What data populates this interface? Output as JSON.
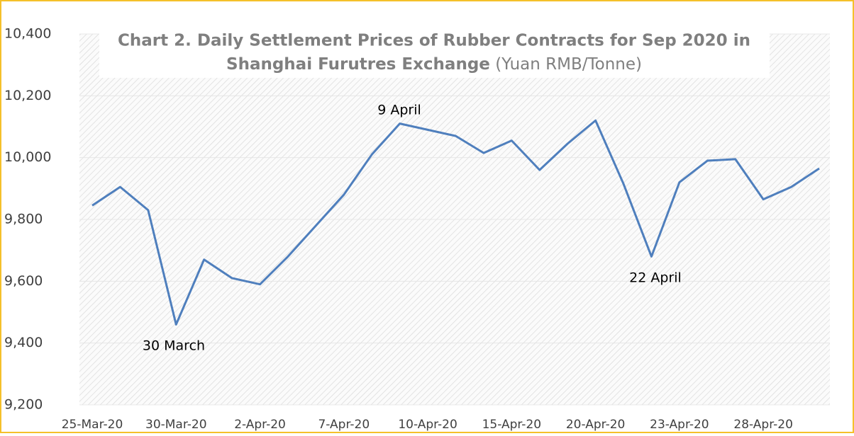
{
  "chart_data": {
    "type": "line",
    "title_lines": [
      "Chart 2. Daily Settlement Prices of Rubber Contracts for Sep 2020 in",
      "Shanghai  Furutres Exchange"
    ],
    "unit": "(Yuan RMB/Tonne)",
    "categories": [
      "25-Mar-20",
      null,
      null,
      "30-Mar-20",
      null,
      null,
      "2-Apr-20",
      null,
      null,
      "7-Apr-20",
      null,
      null,
      "10-Apr-20",
      null,
      null,
      "15-Apr-20",
      null,
      null,
      "20-Apr-20",
      null,
      null,
      "23-Apr-20",
      null,
      null,
      "28-Apr-20",
      null,
      null
    ],
    "series": [
      {
        "name": "Settlement price",
        "color": "#4f7fbd",
        "values": [
          9845,
          9905,
          9830,
          9460,
          9670,
          9610,
          9590,
          9680,
          9780,
          9880,
          10010,
          10110,
          10090,
          10070,
          10015,
          10055,
          9960,
          10045,
          10120,
          9915,
          9680,
          9920,
          9990,
          9995,
          9865,
          9905,
          9965
        ]
      }
    ],
    "ylim": [
      9200,
      10400
    ],
    "yticks": [
      {
        "value": 9200,
        "label": "9,200"
      },
      {
        "value": 9400,
        "label": "9,400"
      },
      {
        "value": 9600,
        "label": "9,600"
      },
      {
        "value": 9800,
        "label": "9,800"
      },
      {
        "value": 10000,
        "label": "10,000"
      },
      {
        "value": 10200,
        "label": "10,200"
      },
      {
        "value": 10400,
        "label": "10,400"
      }
    ],
    "annotations": [
      "30 March",
      "9 April",
      "22 April"
    ]
  }
}
